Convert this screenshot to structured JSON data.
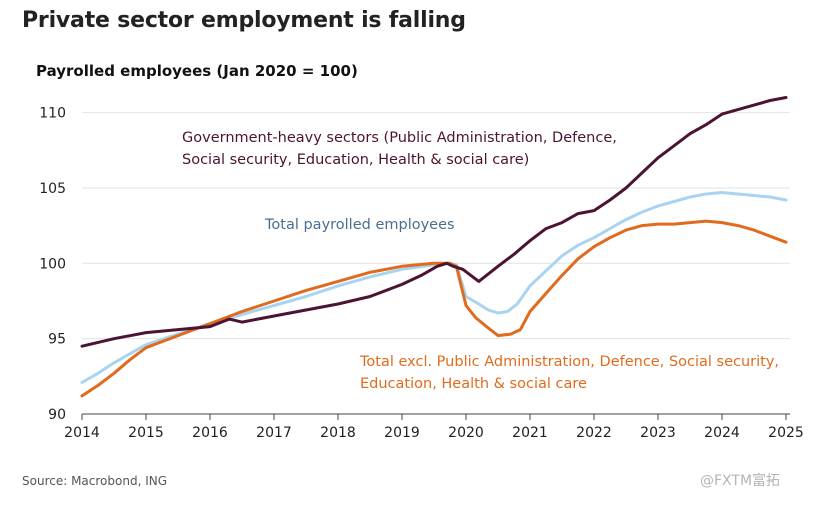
{
  "title": "Private sector employment is falling",
  "source": "Source: Macrobond, ING",
  "watermark": "@FXTM富拓",
  "colors": {
    "government": "#4b1432",
    "total": "#a9d4f0",
    "private": "#e06b1e",
    "total_label": "#4a6f8e",
    "grid": "#e2e2e2"
  },
  "chart_data": {
    "type": "line",
    "ylabel": "Payrolled employees (Jan 2020 = 100)",
    "xlabel": "",
    "xlim": [
      2014,
      2025
    ],
    "ylim": [
      90,
      111.5
    ],
    "xticks": [
      "2014",
      "2015",
      "2016",
      "2017",
      "2018",
      "2019",
      "2020",
      "2021",
      "2022",
      "2023",
      "2024",
      "2025"
    ],
    "yticks": [
      "90",
      "95",
      "100",
      "105",
      "110"
    ],
    "grid": true,
    "annotations": {
      "government": [
        "Government-heavy sectors (Public Administration, Defence,",
        "Social security, Education, Health & social care)"
      ],
      "total": [
        "Total payrolled employees"
      ],
      "private": [
        "Total excl. Public Administration, Defence, Social security,",
        "Education, Health & social care"
      ]
    },
    "series": [
      {
        "key": "government",
        "color": "#4b1432",
        "x": [
          2014.0,
          2014.5,
          2015.0,
          2015.5,
          2016.0,
          2016.3,
          2016.5,
          2017.0,
          2017.5,
          2018.0,
          2018.5,
          2019.0,
          2019.3,
          2019.55,
          2019.7,
          2019.8,
          2019.95,
          2020.2,
          2020.5,
          2020.75,
          2021.0,
          2021.25,
          2021.5,
          2021.75,
          2022.0,
          2022.25,
          2022.5,
          2022.75,
          2023.0,
          2023.25,
          2023.5,
          2023.75,
          2024.0,
          2024.25,
          2024.5,
          2024.75,
          2025.0
        ],
        "y": [
          94.5,
          95.0,
          95.4,
          95.6,
          95.8,
          96.3,
          96.1,
          96.5,
          96.9,
          97.3,
          97.8,
          98.6,
          99.2,
          99.8,
          100.0,
          99.8,
          99.6,
          98.8,
          99.8,
          100.6,
          101.5,
          102.3,
          102.7,
          103.3,
          103.5,
          104.2,
          105.0,
          106.0,
          107.0,
          107.8,
          108.6,
          109.2,
          109.9,
          110.2,
          110.5,
          110.8,
          111.0
        ]
      },
      {
        "key": "total",
        "color": "#a9d4f0",
        "x": [
          2014.0,
          2014.25,
          2014.5,
          2014.75,
          2015.0,
          2015.5,
          2016.0,
          2016.5,
          2017.0,
          2017.5,
          2018.0,
          2018.5,
          2019.0,
          2019.5,
          2019.75,
          2019.85,
          2020.0,
          2020.2,
          2020.35,
          2020.5,
          2020.65,
          2020.8,
          2021.0,
          2021.25,
          2021.5,
          2021.75,
          2022.0,
          2022.25,
          2022.5,
          2022.75,
          2023.0,
          2023.25,
          2023.5,
          2023.75,
          2024.0,
          2024.25,
          2024.5,
          2024.75,
          2025.0
        ],
        "y": [
          92.1,
          92.7,
          93.4,
          94.0,
          94.6,
          95.3,
          96.0,
          96.6,
          97.2,
          97.8,
          98.5,
          99.1,
          99.6,
          99.9,
          100.0,
          99.9,
          97.8,
          97.3,
          96.9,
          96.7,
          96.8,
          97.3,
          98.5,
          99.5,
          100.5,
          101.2,
          101.7,
          102.3,
          102.9,
          103.4,
          103.8,
          104.1,
          104.4,
          104.6,
          104.7,
          104.6,
          104.5,
          104.4,
          104.2
        ]
      },
      {
        "key": "private",
        "color": "#e06b1e",
        "x": [
          2014.0,
          2014.25,
          2014.5,
          2014.75,
          2015.0,
          2015.5,
          2016.0,
          2016.5,
          2017.0,
          2017.5,
          2018.0,
          2018.5,
          2019.0,
          2019.5,
          2019.75,
          2019.85,
          2020.0,
          2020.15,
          2020.35,
          2020.5,
          2020.7,
          2020.85,
          2021.0,
          2021.25,
          2021.5,
          2021.75,
          2022.0,
          2022.25,
          2022.5,
          2022.75,
          2023.0,
          2023.25,
          2023.5,
          2023.75,
          2024.0,
          2024.25,
          2024.5,
          2024.75,
          2025.0
        ],
        "y": [
          91.2,
          91.9,
          92.7,
          93.6,
          94.4,
          95.2,
          96.0,
          96.8,
          97.5,
          98.2,
          98.8,
          99.4,
          99.8,
          100.0,
          100.0,
          99.8,
          97.2,
          96.4,
          95.7,
          95.2,
          95.3,
          95.6,
          96.8,
          98.0,
          99.2,
          100.3,
          101.1,
          101.7,
          102.2,
          102.5,
          102.6,
          102.6,
          102.7,
          102.8,
          102.7,
          102.5,
          102.2,
          101.8,
          101.4
        ]
      }
    ]
  }
}
